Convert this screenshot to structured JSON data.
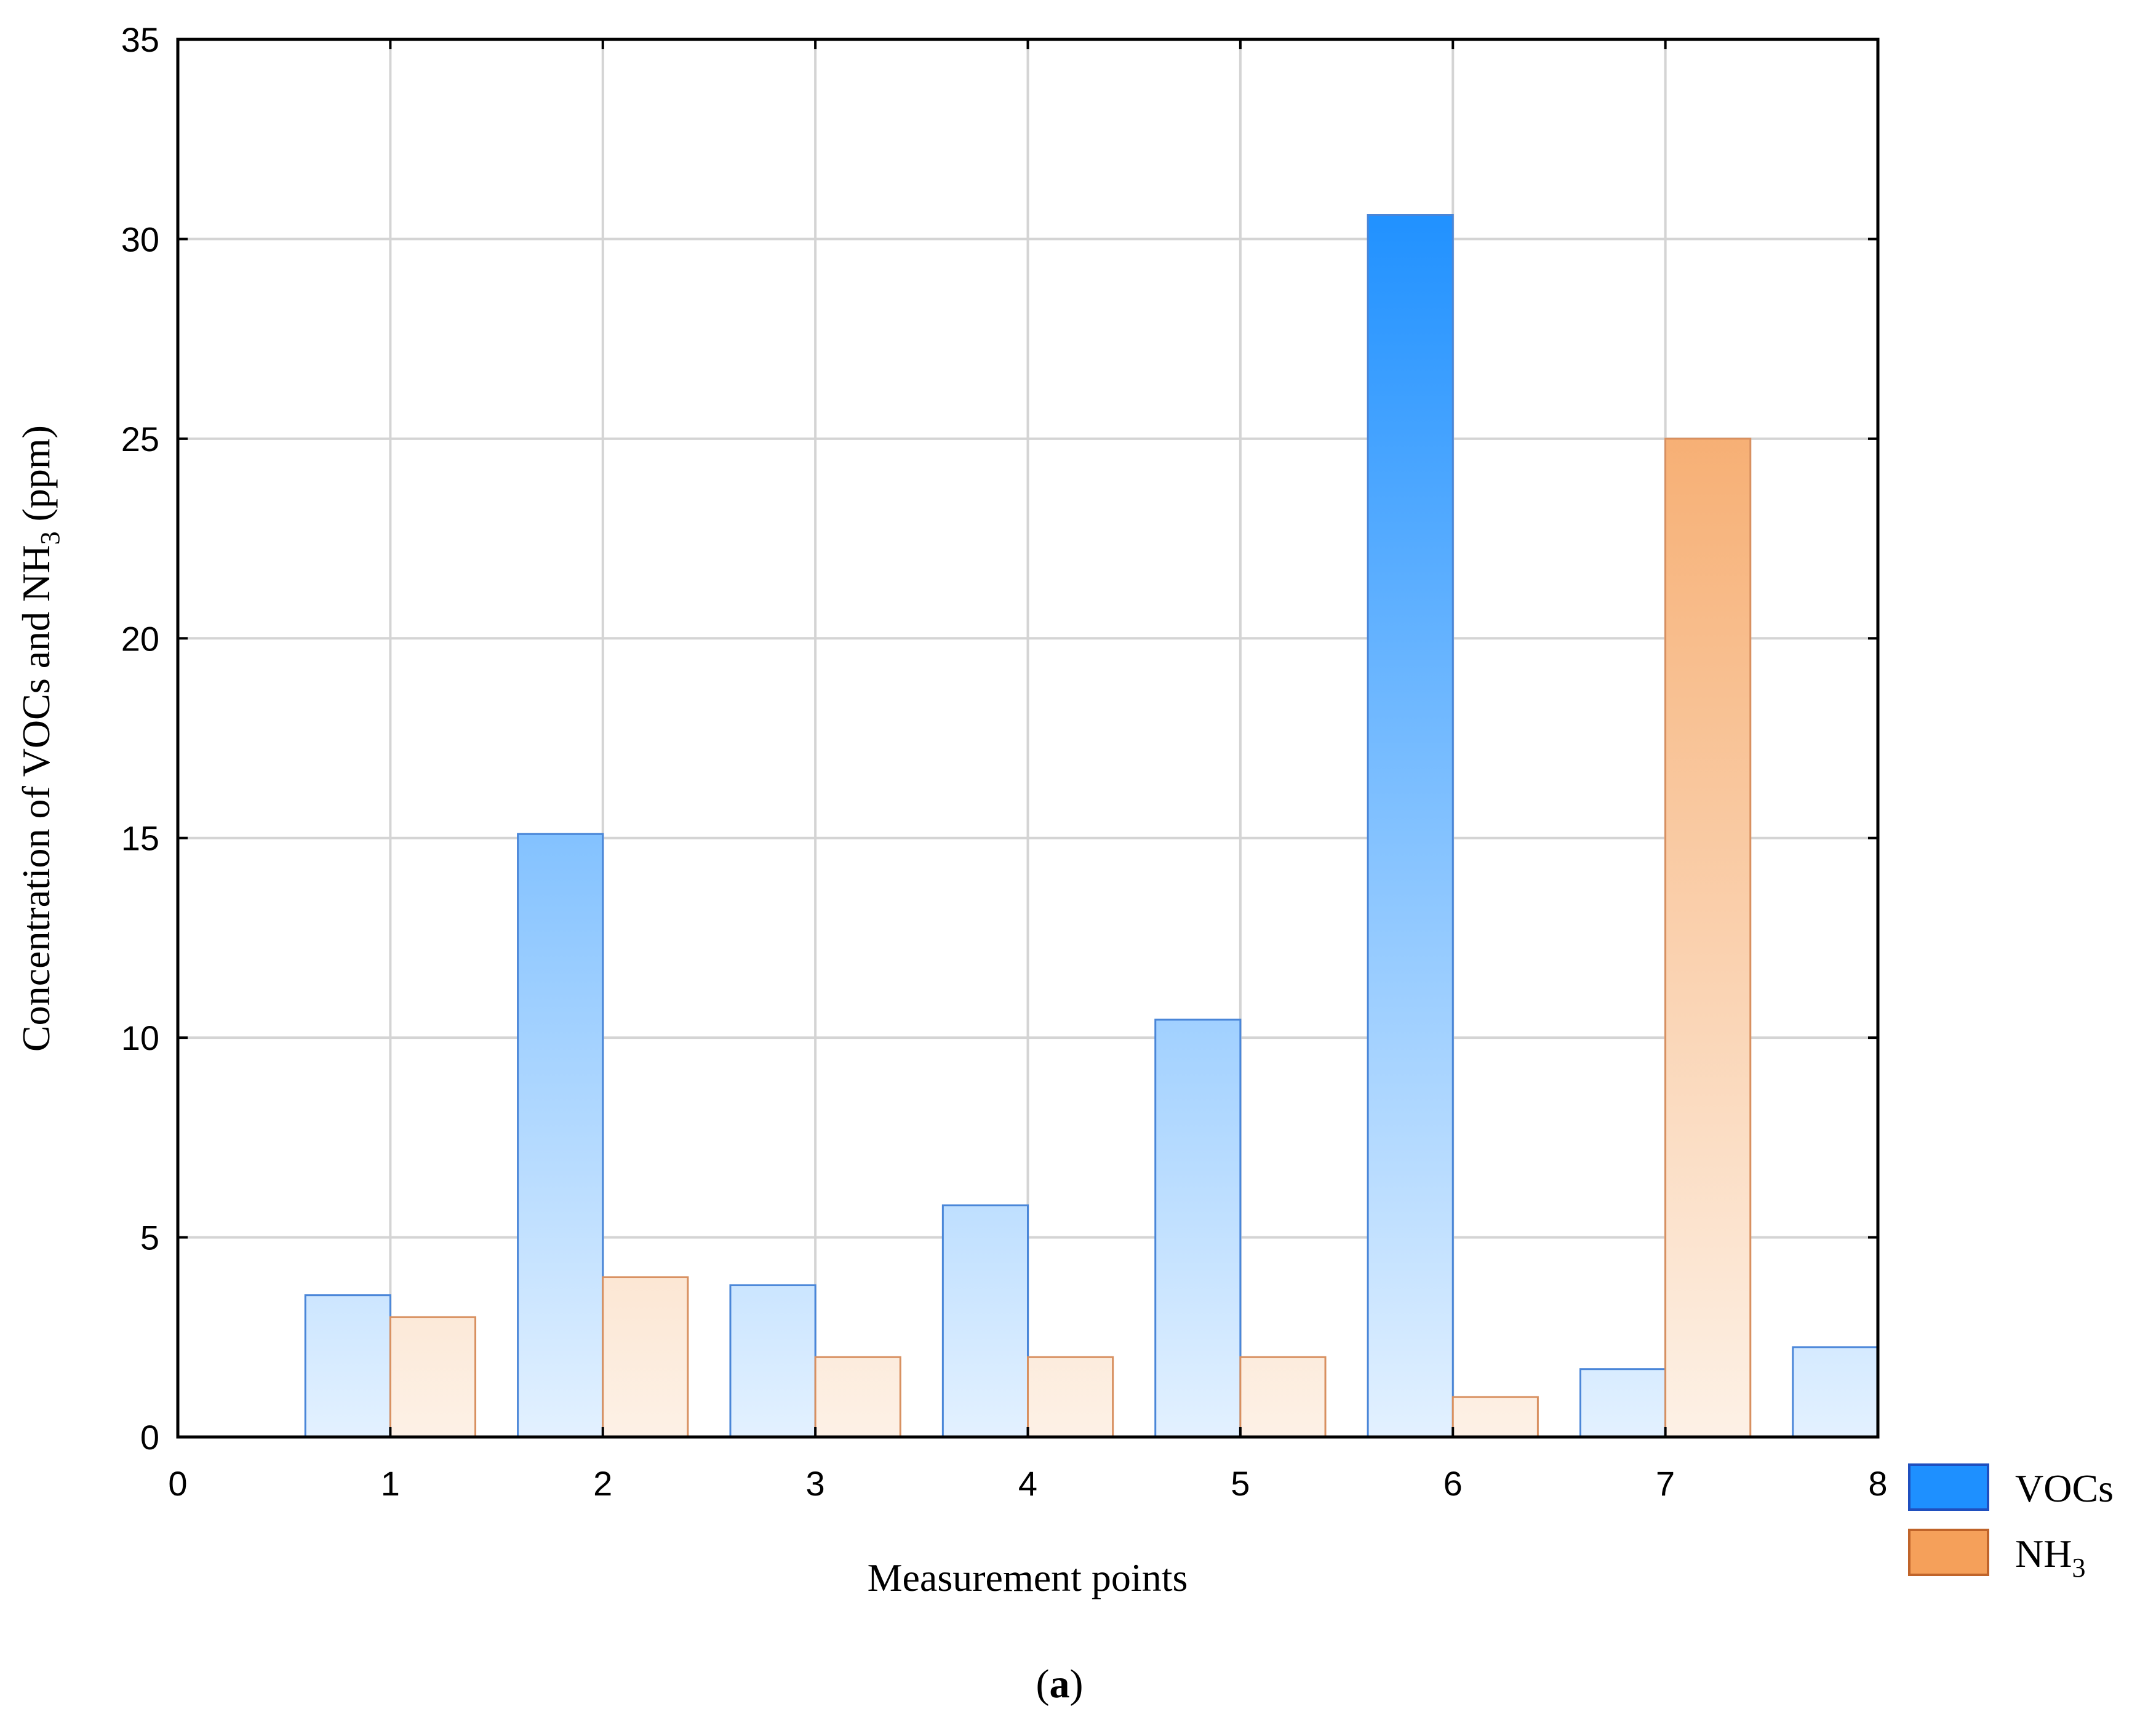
{
  "chart_data": {
    "type": "bar",
    "xlabel": "Measurement points",
    "ylabel": {
      "pre": "Concentration of VOCs and NH",
      "sub": "3",
      "post": " (ppm)"
    },
    "caption": {
      "open": "(",
      "letter": "a",
      "close": ")"
    },
    "xlim": [
      0,
      8
    ],
    "ylim": [
      0,
      35
    ],
    "xticks": [
      0,
      1,
      2,
      3,
      4,
      5,
      6,
      7,
      8
    ],
    "yticks": [
      0,
      5,
      10,
      15,
      20,
      25,
      30,
      35
    ],
    "grid": true,
    "legend_position": "bottom-right outside",
    "categories": [
      1,
      2,
      3,
      4,
      5,
      6,
      7,
      8
    ],
    "series": [
      {
        "name": "VOCs",
        "legend_main": "VOCs",
        "legend_sub": "",
        "values": [
          3.55,
          15.1,
          3.8,
          5.8,
          10.45,
          30.6,
          1.7,
          2.25
        ],
        "color": "#1e90ff",
        "pale": "#e3f1ff",
        "stroke": "#4a86d8",
        "side": "left"
      },
      {
        "name": "NH3",
        "legend_main": "NH",
        "legend_sub": "3",
        "values": [
          3.0,
          4.0,
          2.0,
          2.0,
          2.0,
          1.0,
          25.0,
          null
        ],
        "color": "#f5a05a",
        "pale": "#fdf1e6",
        "stroke": "#d89060",
        "side": "right"
      }
    ]
  }
}
